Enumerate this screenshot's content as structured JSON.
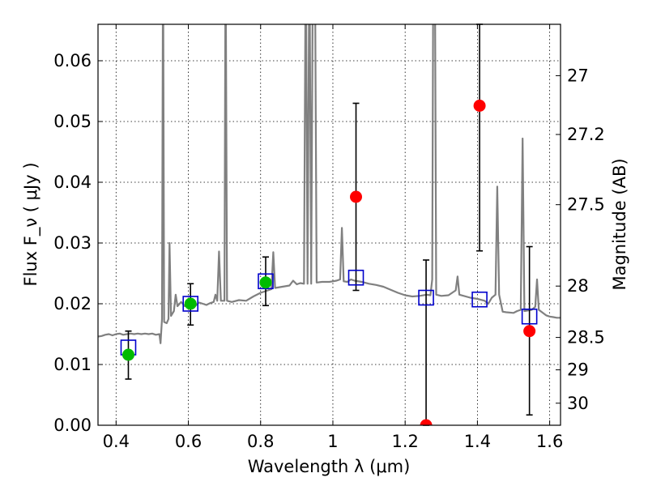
{
  "chart_data": {
    "type": "scatter",
    "xlabel": "Wavelength  λ (μm)",
    "ylabel": "Flux  F_ν  ( μJy )",
    "y2label": "Magnitude (AB)",
    "xlim": [
      0.35,
      1.63
    ],
    "ylim": [
      0.0,
      0.066
    ],
    "x_ticks": [
      0.4,
      0.6,
      0.8,
      1.0,
      1.2,
      1.4,
      1.6
    ],
    "x_tick_labels": [
      "0.4",
      "0.6",
      "0.8",
      "1",
      "1.2",
      "1.4",
      "1.6"
    ],
    "y_ticks": [
      0.0,
      0.01,
      0.02,
      0.03,
      0.04,
      0.05,
      0.06
    ],
    "y_tick_labels": [
      "0.00",
      "0.01",
      "0.02",
      "0.03",
      "0.04",
      "0.05",
      "0.06"
    ],
    "y2_ticks": [
      27,
      27.2,
      27.5,
      28,
      28.5,
      29,
      30
    ],
    "y2_tick_labels": [
      "27",
      "27.2",
      "27.5",
      "28",
      "28.5",
      "29",
      "30"
    ],
    "grid": true,
    "colors": {
      "spectrum": "#808080",
      "detection": "#00bb00",
      "non_detection": "#ff0000",
      "model": "#0000cc",
      "errorbar": "#000000"
    },
    "spectrum": [
      [
        0.35,
        0.0146
      ],
      [
        0.36,
        0.0147
      ],
      [
        0.37,
        0.0149
      ],
      [
        0.38,
        0.015
      ],
      [
        0.39,
        0.0148
      ],
      [
        0.4,
        0.015
      ],
      [
        0.41,
        0.0151
      ],
      [
        0.42,
        0.0149
      ],
      [
        0.43,
        0.015
      ],
      [
        0.44,
        0.0151
      ],
      [
        0.45,
        0.015
      ],
      [
        0.46,
        0.0151
      ],
      [
        0.47,
        0.015
      ],
      [
        0.48,
        0.0151
      ],
      [
        0.49,
        0.015
      ],
      [
        0.5,
        0.0151
      ],
      [
        0.51,
        0.0149
      ],
      [
        0.52,
        0.015
      ],
      [
        0.523,
        0.0135
      ],
      [
        0.527,
        0.0175
      ],
      [
        0.53,
        0.08
      ],
      [
        0.533,
        0.017
      ],
      [
        0.54,
        0.0168
      ],
      [
        0.545,
        0.0175
      ],
      [
        0.548,
        0.03
      ],
      [
        0.552,
        0.018
      ],
      [
        0.56,
        0.0188
      ],
      [
        0.565,
        0.0215
      ],
      [
        0.57,
        0.0196
      ],
      [
        0.58,
        0.0203
      ],
      [
        0.59,
        0.0196
      ],
      [
        0.6,
        0.0198
      ],
      [
        0.61,
        0.0201
      ],
      [
        0.62,
        0.0197
      ],
      [
        0.63,
        0.0202
      ],
      [
        0.64,
        0.02
      ],
      [
        0.65,
        0.0198
      ],
      [
        0.66,
        0.0201
      ],
      [
        0.67,
        0.0203
      ],
      [
        0.675,
        0.0215
      ],
      [
        0.68,
        0.0205
      ],
      [
        0.685,
        0.0286
      ],
      [
        0.69,
        0.0205
      ],
      [
        0.7,
        0.0205
      ],
      [
        0.703,
        0.08
      ],
      [
        0.707,
        0.0205
      ],
      [
        0.72,
        0.0203
      ],
      [
        0.74,
        0.0206
      ],
      [
        0.76,
        0.0205
      ],
      [
        0.78,
        0.0212
      ],
      [
        0.8,
        0.0218
      ],
      [
        0.82,
        0.0222
      ],
      [
        0.83,
        0.0224
      ],
      [
        0.835,
        0.0285
      ],
      [
        0.84,
        0.0226
      ],
      [
        0.86,
        0.0228
      ],
      [
        0.88,
        0.023
      ],
      [
        0.89,
        0.0238
      ],
      [
        0.9,
        0.0232
      ],
      [
        0.91,
        0.0234
      ],
      [
        0.92,
        0.0233
      ],
      [
        0.925,
        0.08
      ],
      [
        0.93,
        0.0233
      ],
      [
        0.935,
        0.08
      ],
      [
        0.94,
        0.0233
      ],
      [
        0.945,
        0.08
      ],
      [
        0.95,
        0.08
      ],
      [
        0.955,
        0.0235
      ],
      [
        0.97,
        0.0236
      ],
      [
        0.99,
        0.0236
      ],
      [
        1.0,
        0.0237
      ],
      [
        1.01,
        0.0238
      ],
      [
        1.02,
        0.024
      ],
      [
        1.025,
        0.0325
      ],
      [
        1.03,
        0.0237
      ],
      [
        1.04,
        0.0236
      ],
      [
        1.05,
        0.024
      ],
      [
        1.06,
        0.0238
      ],
      [
        1.08,
        0.0236
      ],
      [
        1.1,
        0.0233
      ],
      [
        1.12,
        0.0231
      ],
      [
        1.14,
        0.0228
      ],
      [
        1.16,
        0.0223
      ],
      [
        1.18,
        0.0218
      ],
      [
        1.2,
        0.0214
      ],
      [
        1.22,
        0.0212
      ],
      [
        1.24,
        0.0213
      ],
      [
        1.26,
        0.0215
      ],
      [
        1.27,
        0.0214
      ],
      [
        1.275,
        0.024
      ],
      [
        1.278,
        0.08
      ],
      [
        1.282,
        0.08
      ],
      [
        1.286,
        0.0215
      ],
      [
        1.3,
        0.0213
      ],
      [
        1.32,
        0.0214
      ],
      [
        1.34,
        0.0222
      ],
      [
        1.345,
        0.0245
      ],
      [
        1.35,
        0.0215
      ],
      [
        1.38,
        0.021
      ],
      [
        1.4,
        0.0208
      ],
      [
        1.42,
        0.0205
      ],
      [
        1.43,
        0.02
      ],
      [
        1.44,
        0.021
      ],
      [
        1.45,
        0.0215
      ],
      [
        1.455,
        0.0393
      ],
      [
        1.46,
        0.0215
      ],
      [
        1.47,
        0.0187
      ],
      [
        1.48,
        0.0186
      ],
      [
        1.5,
        0.0185
      ],
      [
        1.51,
        0.0188
      ],
      [
        1.52,
        0.019
      ],
      [
        1.525,
        0.0472
      ],
      [
        1.53,
        0.0188
      ],
      [
        1.55,
        0.019
      ],
      [
        1.56,
        0.0195
      ],
      [
        1.565,
        0.024
      ],
      [
        1.57,
        0.019
      ],
      [
        1.59,
        0.0181
      ],
      [
        1.6,
        0.0179
      ],
      [
        1.61,
        0.0178
      ],
      [
        1.62,
        0.0177
      ],
      [
        1.63,
        0.0177
      ]
    ],
    "model_points": [
      {
        "x": 0.434,
        "y": 0.0128
      },
      {
        "x": 0.606,
        "y": 0.02
      },
      {
        "x": 0.814,
        "y": 0.0237
      },
      {
        "x": 1.064,
        "y": 0.0243
      },
      {
        "x": 1.258,
        "y": 0.021
      },
      {
        "x": 1.406,
        "y": 0.0207
      },
      {
        "x": 1.544,
        "y": 0.0179
      }
    ],
    "observed_points": [
      {
        "x": 0.434,
        "y": 0.0116,
        "err_low": 0.0076,
        "err_high": 0.0155,
        "color": "detection"
      },
      {
        "x": 0.606,
        "y": 0.02,
        "err_low": 0.0165,
        "err_high": 0.0233,
        "color": "detection"
      },
      {
        "x": 0.814,
        "y": 0.0235,
        "err_low": 0.0197,
        "err_high": 0.0277,
        "color": "detection"
      },
      {
        "x": 1.064,
        "y": 0.0376,
        "err_low": 0.0222,
        "err_high": 0.053,
        "color": "non_detection"
      },
      {
        "x": 1.258,
        "y": 0.0,
        "err_low": 0.0,
        "err_high": 0.0272,
        "color": "non_detection"
      },
      {
        "x": 1.406,
        "y": 0.0526,
        "err_low": 0.0287,
        "err_high": 0.066,
        "color": "non_detection"
      },
      {
        "x": 1.544,
        "y": 0.0155,
        "err_low": 0.0017,
        "err_high": 0.0294,
        "color": "non_detection"
      }
    ]
  }
}
